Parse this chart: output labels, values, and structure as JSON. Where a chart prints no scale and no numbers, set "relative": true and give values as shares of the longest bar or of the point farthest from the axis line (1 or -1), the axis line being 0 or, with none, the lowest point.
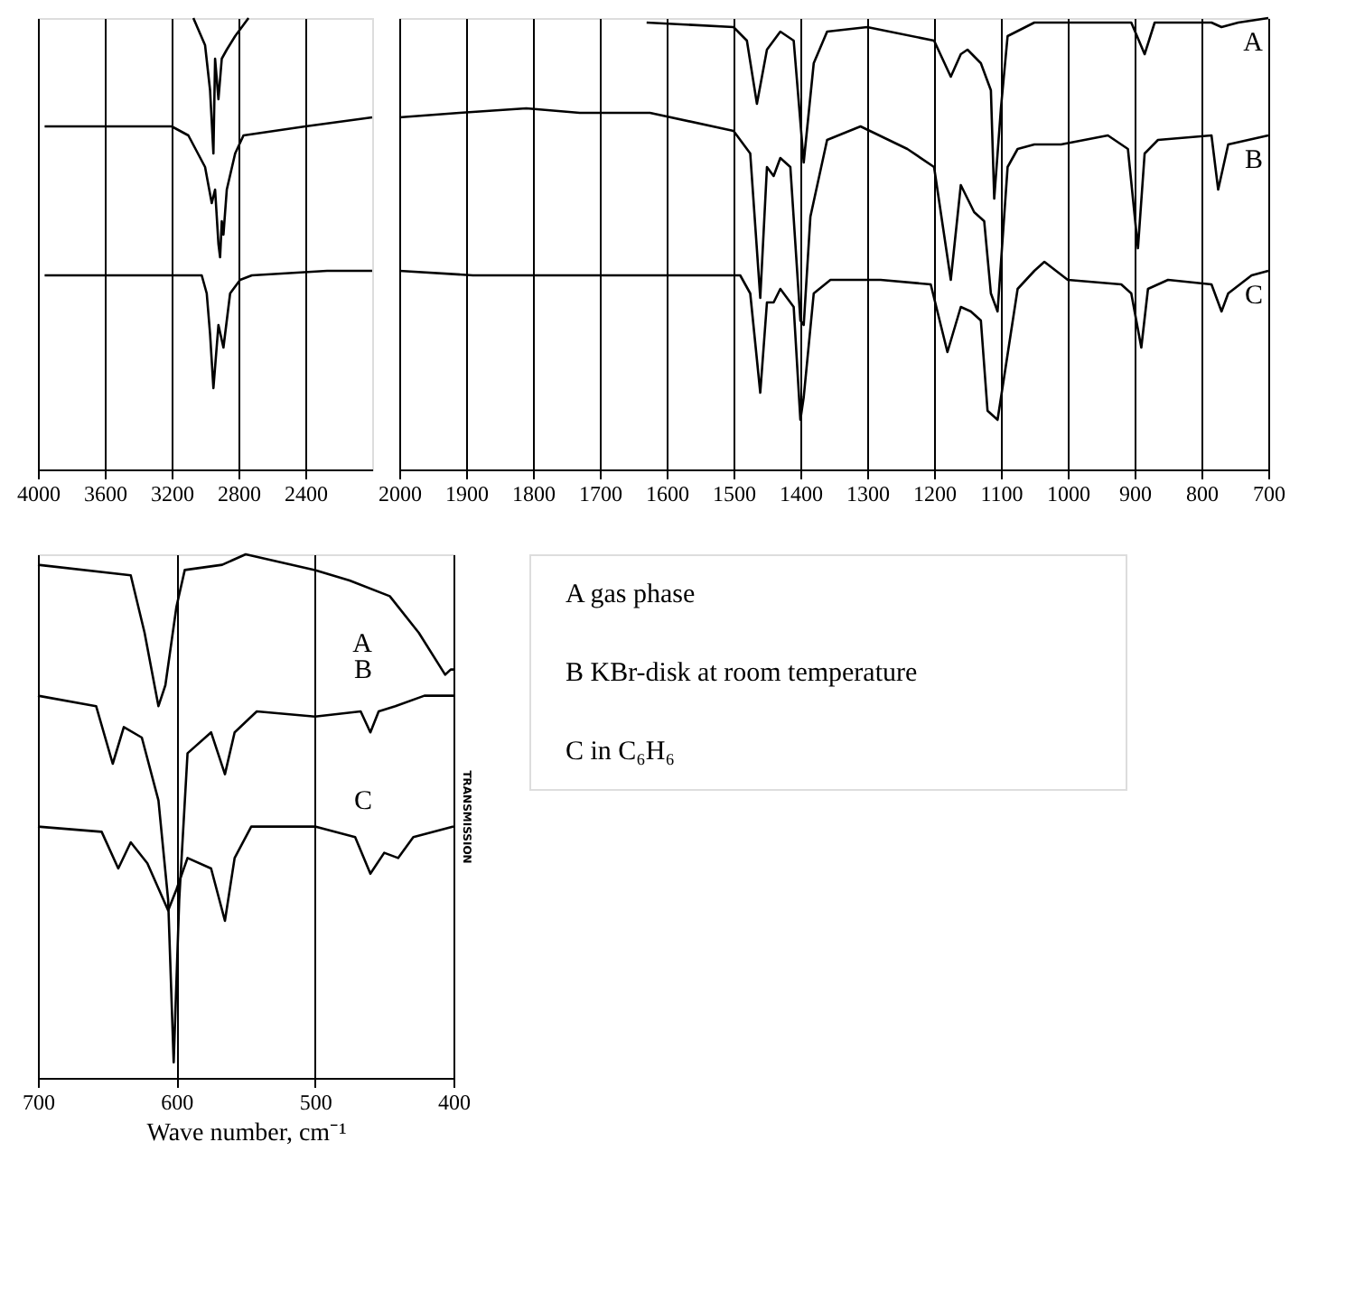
{
  "chart_data": [
    {
      "type": "line",
      "relative": true,
      "xlim": [
        4000,
        2000
      ],
      "xticks": [
        4000,
        3600,
        3200,
        2800,
        2400
      ],
      "grid": "x",
      "tick_labels": "x",
      "line_style": "solid",
      "marker": "none",
      "series": [
        {
          "color": "#000000",
          "x": [
            3070,
            3000,
            2970,
            2950,
            2940,
            2920,
            2900,
            2870,
            2820,
            2740
          ],
          "values": [
            1.0,
            0.94,
            0.84,
            0.7,
            0.91,
            0.82,
            0.91,
            0.93,
            0.96,
            1.0
          ]
        },
        {
          "color": "#000000",
          "x": [
            3960,
            3600,
            3200,
            3100,
            3000,
            2960,
            2940,
            2920,
            2910,
            2900,
            2890,
            2870,
            2820,
            2770,
            2400,
            2000
          ],
          "values": [
            0.76,
            0.76,
            0.76,
            0.74,
            0.67,
            0.59,
            0.62,
            0.5,
            0.47,
            0.55,
            0.52,
            0.62,
            0.7,
            0.74,
            0.76,
            0.78
          ]
        },
        {
          "color": "#000000",
          "x": [
            3960,
            3600,
            3200,
            3020,
            2990,
            2970,
            2950,
            2920,
            2890,
            2850,
            2790,
            2720,
            2270,
            2000
          ],
          "values": [
            0.43,
            0.43,
            0.43,
            0.43,
            0.39,
            0.3,
            0.18,
            0.32,
            0.27,
            0.39,
            0.42,
            0.43,
            0.44,
            0.44
          ]
        }
      ]
    },
    {
      "type": "line",
      "relative": true,
      "xlim": [
        2000,
        700
      ],
      "xticks": [
        2000,
        1900,
        1800,
        1700,
        1600,
        1500,
        1400,
        1300,
        1200,
        1100,
        1000,
        900,
        800,
        700
      ],
      "grid": "x",
      "tick_labels": "x",
      "line_style": "solid",
      "marker": "none",
      "series": [
        {
          "name": "A",
          "color": "#000000",
          "x": [
            1630,
            1500,
            1480,
            1465,
            1450,
            1430,
            1410,
            1395,
            1380,
            1360,
            1300,
            1200,
            1175,
            1160,
            1150,
            1130,
            1115,
            1110,
            1100,
            1090,
            1050,
            905,
            885,
            870,
            785,
            770,
            745,
            700
          ],
          "values": [
            0.99,
            0.98,
            0.95,
            0.81,
            0.93,
            0.97,
            0.95,
            0.68,
            0.9,
            0.97,
            0.98,
            0.95,
            0.87,
            0.92,
            0.93,
            0.9,
            0.84,
            0.6,
            0.8,
            0.96,
            0.99,
            0.99,
            0.92,
            0.99,
            0.99,
            0.98,
            0.99,
            1.0
          ]
        },
        {
          "name": "B",
          "color": "#000000",
          "x": [
            2000,
            1910,
            1810,
            1730,
            1625,
            1500,
            1475,
            1460,
            1450,
            1440,
            1430,
            1415,
            1400,
            1395,
            1385,
            1360,
            1310,
            1240,
            1200,
            1175,
            1160,
            1150,
            1140,
            1125,
            1115,
            1105,
            1090,
            1075,
            1050,
            1010,
            940,
            910,
            895,
            885,
            865,
            785,
            775,
            760,
            700
          ],
          "values": [
            0.78,
            0.79,
            0.8,
            0.79,
            0.79,
            0.75,
            0.7,
            0.38,
            0.67,
            0.65,
            0.69,
            0.67,
            0.33,
            0.32,
            0.56,
            0.73,
            0.76,
            0.71,
            0.67,
            0.42,
            0.63,
            0.6,
            0.57,
            0.55,
            0.39,
            0.35,
            0.67,
            0.71,
            0.72,
            0.72,
            0.74,
            0.71,
            0.49,
            0.7,
            0.73,
            0.74,
            0.62,
            0.72,
            0.74
          ]
        },
        {
          "name": "C",
          "color": "#000000",
          "x": [
            2000,
            1890,
            1730,
            1625,
            1490,
            1475,
            1460,
            1450,
            1440,
            1430,
            1410,
            1400,
            1395,
            1380,
            1355,
            1280,
            1205,
            1180,
            1160,
            1145,
            1130,
            1120,
            1105,
            1075,
            1050,
            1035,
            1000,
            920,
            905,
            890,
            880,
            850,
            785,
            770,
            760,
            725,
            700
          ],
          "values": [
            0.44,
            0.43,
            0.43,
            0.43,
            0.43,
            0.39,
            0.17,
            0.37,
            0.37,
            0.4,
            0.36,
            0.11,
            0.16,
            0.39,
            0.42,
            0.42,
            0.41,
            0.26,
            0.36,
            0.35,
            0.33,
            0.13,
            0.11,
            0.4,
            0.44,
            0.46,
            0.42,
            0.41,
            0.39,
            0.27,
            0.4,
            0.42,
            0.41,
            0.35,
            0.39,
            0.43,
            0.44
          ]
        }
      ]
    },
    {
      "type": "line",
      "relative": true,
      "xlim": [
        700,
        400
      ],
      "xticks": [
        700,
        600,
        500,
        400
      ],
      "grid": "x",
      "tick_labels": "x",
      "line_style": "solid",
      "marker": "none",
      "xlabel": "Wave number, cm⁻¹",
      "ylabel": "TRANSMISSION",
      "annotations": [
        "A   gas phase",
        "B   KBr-disk at room temperature",
        "C   in C₆H₆"
      ],
      "series": [
        {
          "name": "A",
          "color": "#000000",
          "x": [
            700,
            633,
            623,
            613,
            608,
            600,
            594,
            567,
            550,
            500,
            475,
            446,
            425,
            406,
            402,
            400
          ],
          "values": [
            0.98,
            0.96,
            0.85,
            0.71,
            0.75,
            0.9,
            0.97,
            0.98,
            1.0,
            0.97,
            0.95,
            0.92,
            0.85,
            0.77,
            0.78,
            0.78
          ]
        },
        {
          "name": "B",
          "color": "#000000",
          "x": [
            700,
            658,
            646,
            638,
            625,
            613,
            606,
            602,
            598,
            592,
            575,
            565,
            558,
            542,
            500,
            467,
            460,
            454,
            442,
            421,
            400
          ],
          "values": [
            0.73,
            0.71,
            0.6,
            0.67,
            0.65,
            0.53,
            0.34,
            0.03,
            0.34,
            0.62,
            0.66,
            0.58,
            0.66,
            0.7,
            0.69,
            0.7,
            0.66,
            0.7,
            0.71,
            0.73,
            0.73
          ]
        },
        {
          "name": "C",
          "color": "#000000",
          "x": [
            700,
            654,
            642,
            633,
            621,
            606,
            600,
            592,
            575,
            565,
            558,
            546,
            500,
            471,
            460,
            450,
            440,
            429,
            400
          ],
          "values": [
            0.48,
            0.47,
            0.4,
            0.45,
            0.41,
            0.32,
            0.36,
            0.42,
            0.4,
            0.3,
            0.42,
            0.48,
            0.48,
            0.46,
            0.39,
            0.43,
            0.42,
            0.46,
            0.48
          ]
        }
      ]
    }
  ]
}
